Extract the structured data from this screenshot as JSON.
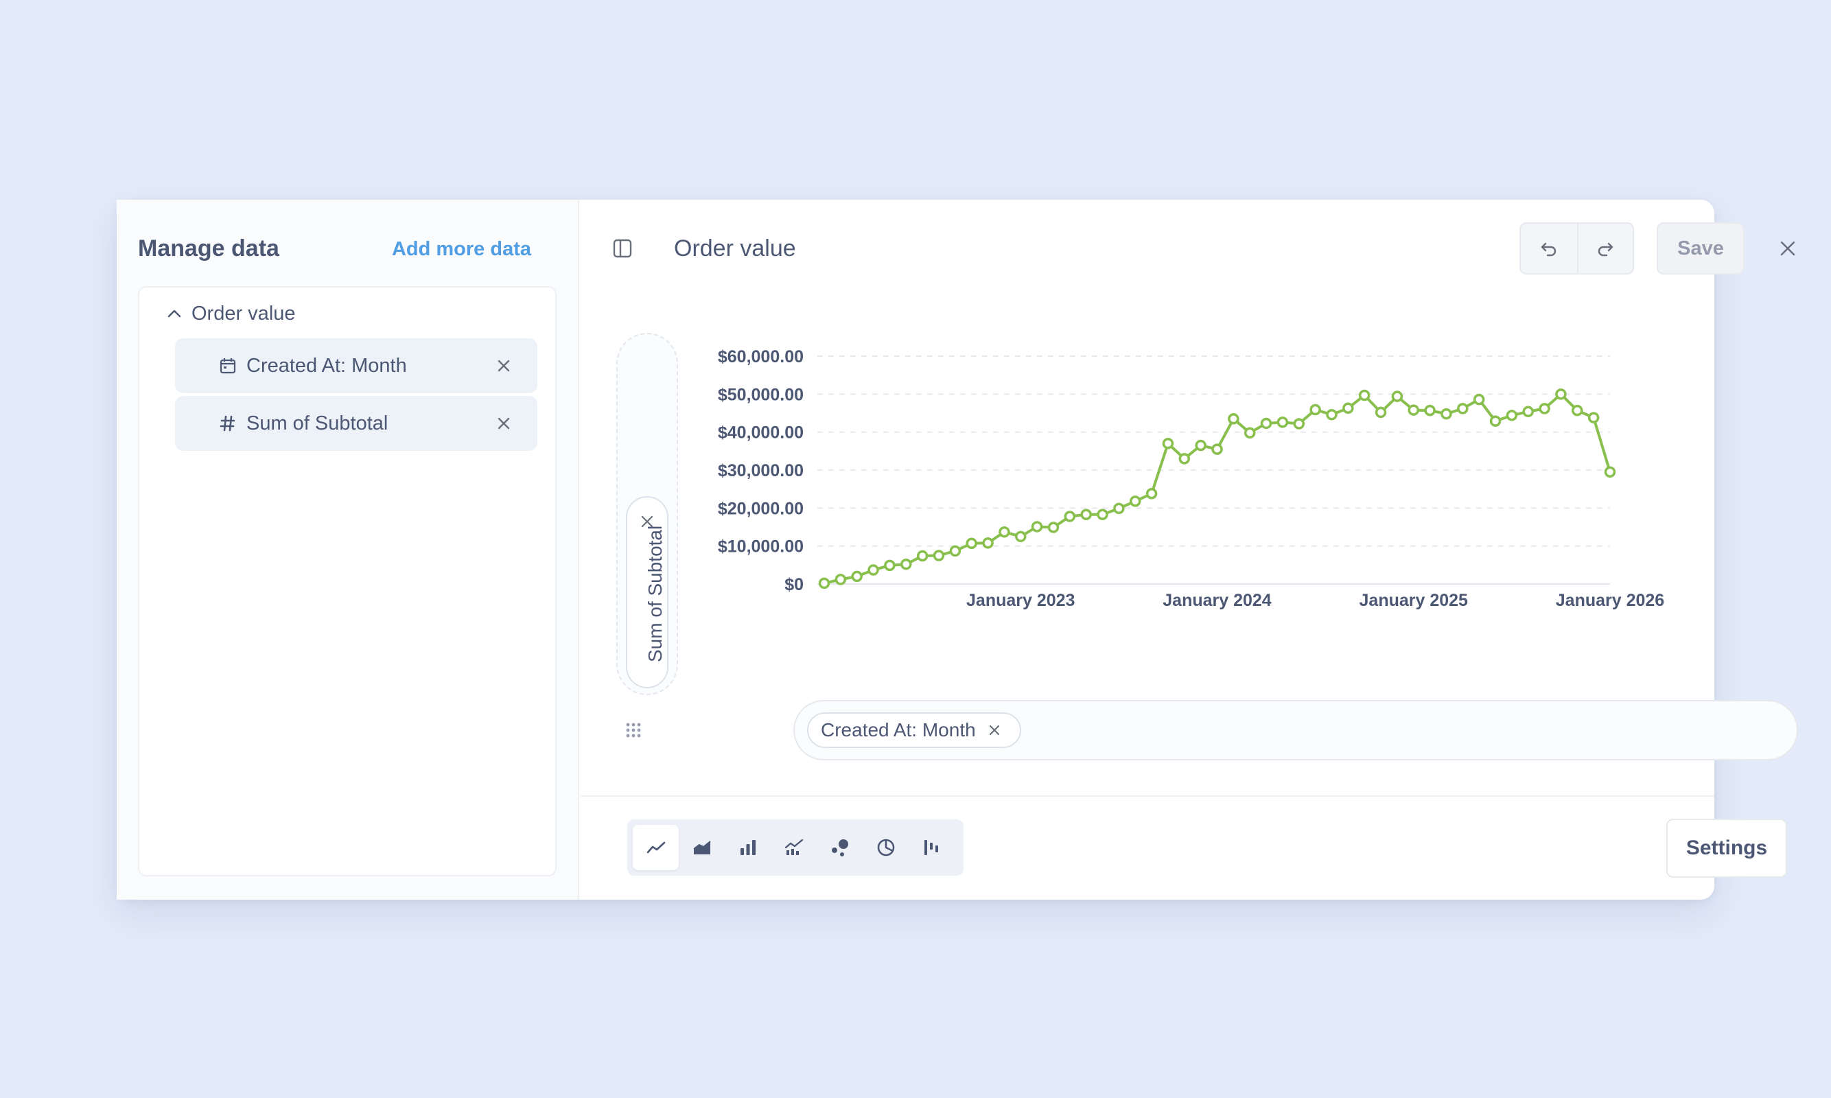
{
  "sidebar": {
    "title": "Manage data",
    "add_more_label": "Add more data",
    "datasource": {
      "name": "Order value",
      "columns": [
        {
          "label": "Created At: Month",
          "icon": "calendar-icon"
        },
        {
          "label": "Sum of Subtotal",
          "icon": "hash-icon"
        }
      ]
    }
  },
  "header": {
    "title": "Order value",
    "save_label": "Save"
  },
  "y_axis": {
    "label": "Sum of Subtotal"
  },
  "x_axis": {
    "label": "Created At: Month"
  },
  "viz_types": [
    "line",
    "area",
    "bar",
    "combo",
    "scatter",
    "pie",
    "waterfall"
  ],
  "active_viz": "line",
  "footer": {
    "settings_label": "Settings"
  },
  "colors": {
    "series": "#88bf4d",
    "accent": "#509ee3"
  },
  "chart_data": {
    "type": "line",
    "title": "",
    "xlabel": "",
    "ylabel": "",
    "x_start": "2022-01",
    "x_ticks": [
      "January 2023",
      "January 2024",
      "January 2025",
      "January 2026"
    ],
    "y_ticks": [
      "$0",
      "$10,000.00",
      "$20,000.00",
      "$30,000.00",
      "$40,000.00",
      "$50,000.00",
      "$60,000.00"
    ],
    "ylim": [
      0,
      60000
    ],
    "series": [
      {
        "values": [
          200,
          1200,
          2000,
          3700,
          4900,
          5200,
          7400,
          7500,
          8700,
          10700,
          10800,
          13700,
          12500,
          15100,
          14900,
          17800,
          18300,
          18300,
          19900,
          21800,
          23800,
          37000,
          33000,
          36500,
          35500,
          43500,
          39800,
          42300,
          42600,
          42200,
          45900,
          44600,
          46300,
          49700,
          45200,
          49400,
          45800,
          45700,
          44800,
          46200,
          48600,
          42900,
          44400,
          45400,
          46200,
          50000,
          45700,
          43800,
          29500
        ]
      }
    ]
  }
}
